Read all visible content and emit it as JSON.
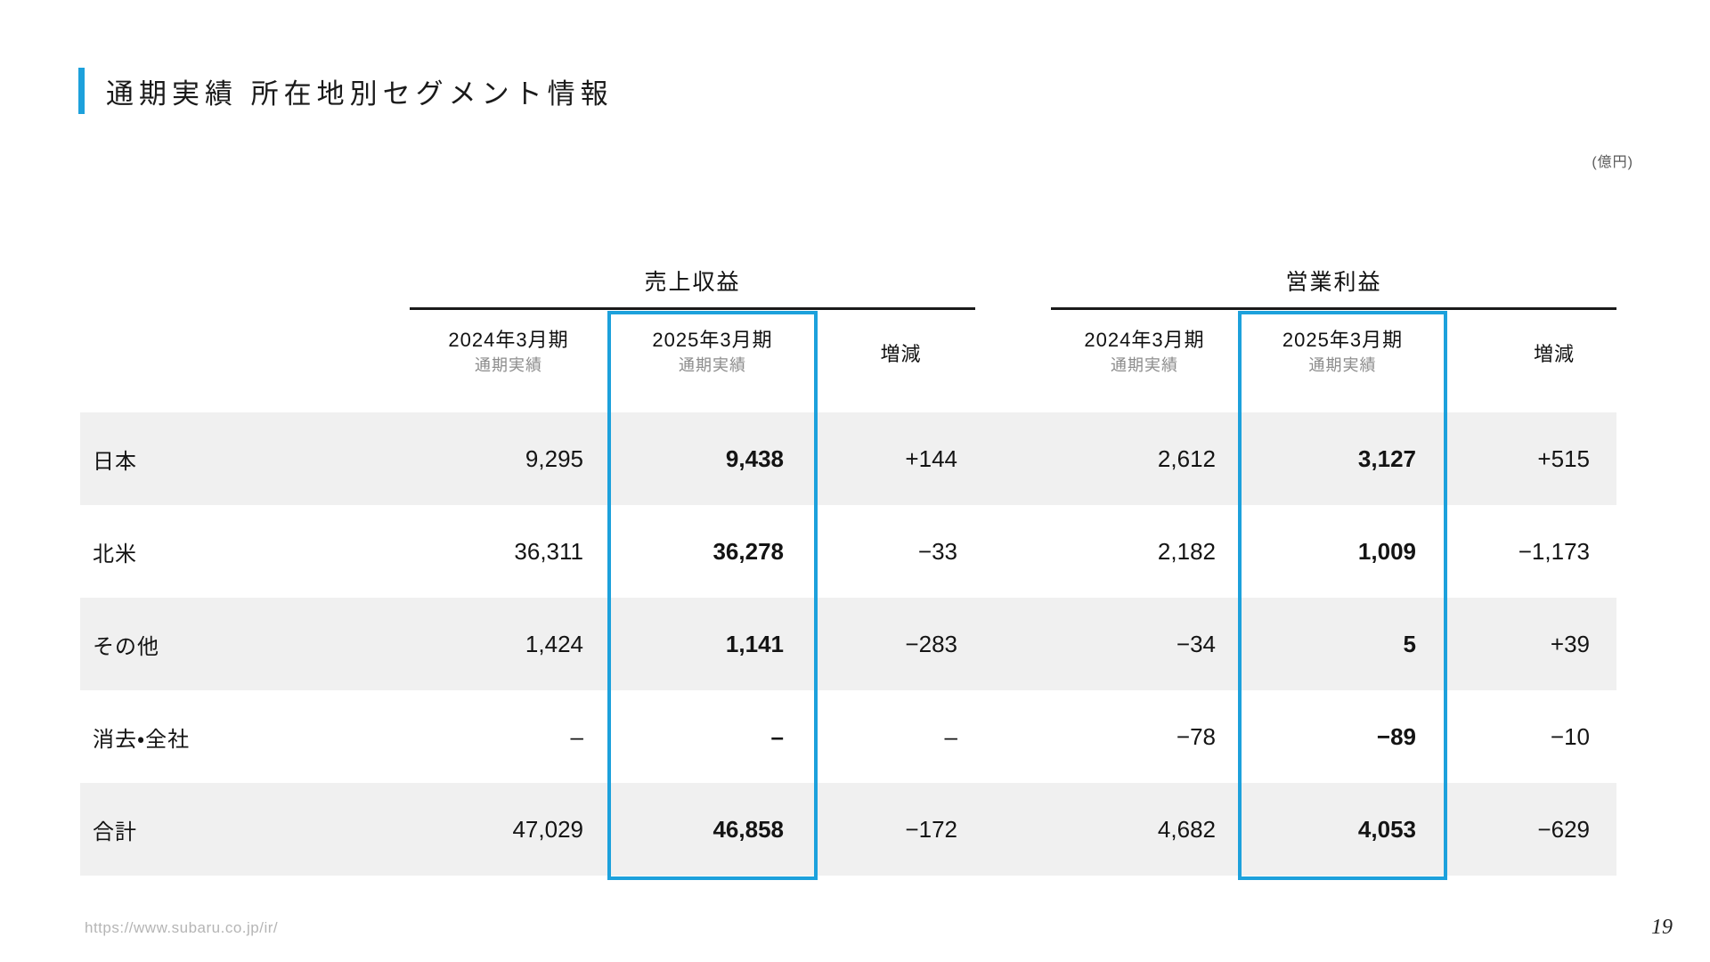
{
  "slide": {
    "title": "通期実績 所在地別セグメント情報",
    "unit_note": "(億円)",
    "footer_url": "https://www.subaru.co.jp/ir/",
    "page_number": "19"
  },
  "colors": {
    "accent": "#1da1dc",
    "row_band": "#f0f0f0"
  },
  "table": {
    "group_headers": {
      "revenue": "売上収益",
      "operating_profit": "営業利益"
    },
    "column_headers": {
      "fy2024_line1": "2024年3月期",
      "fy2024_line2": "通期実績",
      "fy2025_line1": "2025年3月期",
      "fy2025_line2": "通期実績",
      "change": "増減"
    },
    "rows": [
      {
        "label": "日本",
        "rev_fy2024": "9,295",
        "rev_fy2025": "9,438",
        "rev_change": "+144",
        "op_fy2024": "2,612",
        "op_fy2025": "3,127",
        "op_change": "+515"
      },
      {
        "label": "北米",
        "rev_fy2024": "36,311",
        "rev_fy2025": "36,278",
        "rev_change": "−33",
        "op_fy2024": "2,182",
        "op_fy2025": "1,009",
        "op_change": "−1,173"
      },
      {
        "label": "その他",
        "rev_fy2024": "1,424",
        "rev_fy2025": "1,141",
        "rev_change": "−283",
        "op_fy2024": "−34",
        "op_fy2025": "5",
        "op_change": "+39"
      },
      {
        "label": "消去・全社",
        "rev_fy2024": "–",
        "rev_fy2025": "–",
        "rev_change": "–",
        "op_fy2024": "−78",
        "op_fy2025": "−89",
        "op_change": "−10"
      },
      {
        "label": "合計",
        "rev_fy2024": "47,029",
        "rev_fy2025": "46,858",
        "rev_change": "−172",
        "op_fy2024": "4,682",
        "op_fy2025": "4,053",
        "op_change": "−629"
      }
    ]
  }
}
